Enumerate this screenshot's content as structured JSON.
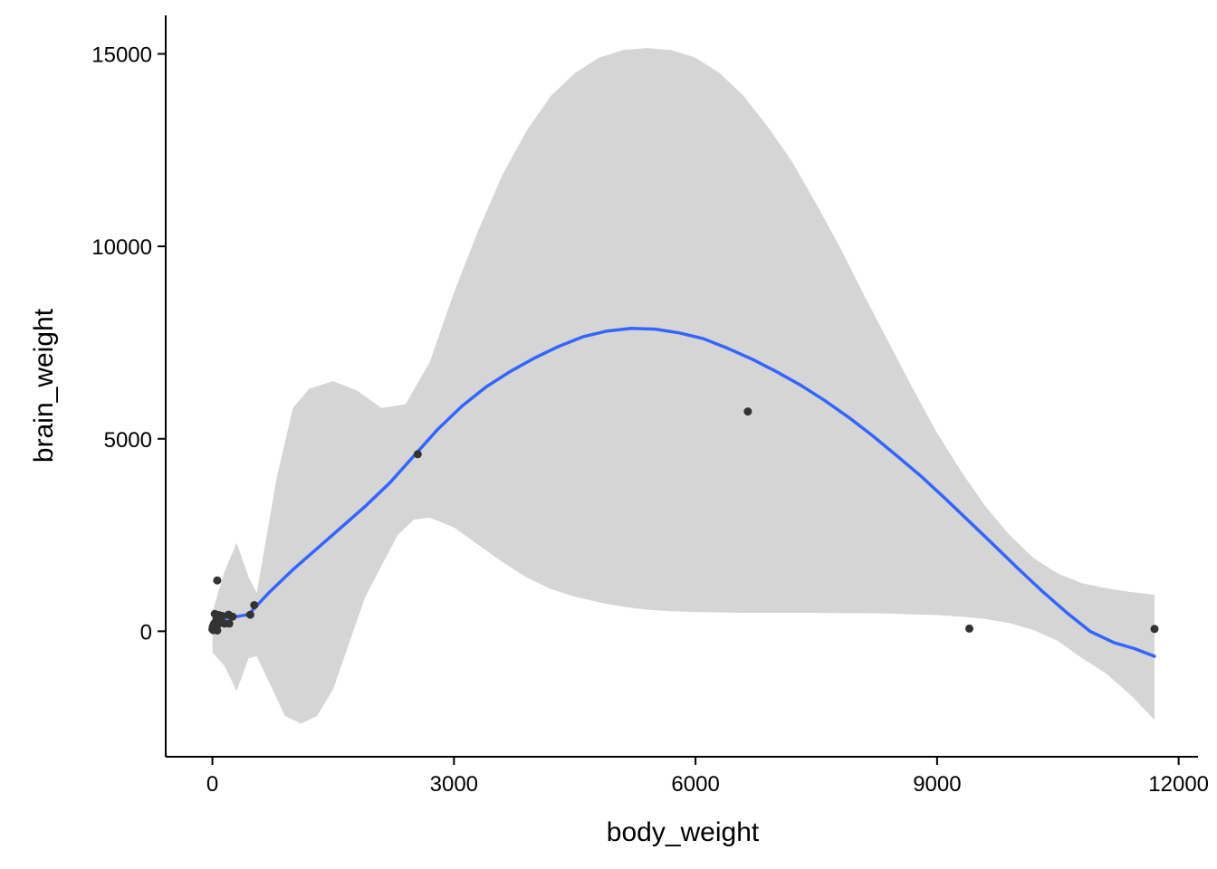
{
  "chart_data": {
    "type": "scatter",
    "title": "",
    "xlabel": "body_weight",
    "ylabel": "brain_weight",
    "xlim": [
      -580,
      12240
    ],
    "ylim": [
      -3260,
      16000
    ],
    "x_ticks": [
      0,
      3000,
      6000,
      9000,
      12000
    ],
    "x_tick_labels": [
      "0",
      "3000",
      "6000",
      "9000",
      "12000"
    ],
    "y_ticks": [
      0,
      5000,
      10000,
      15000
    ],
    "y_tick_labels": [
      "0",
      "5000",
      "10000",
      "15000"
    ],
    "grid": false,
    "legend": "none",
    "colors": {
      "points": "#333333",
      "smooth_line": "#3366FF",
      "confidence_band": "#D5D5D5",
      "axes": "#000000"
    },
    "points": [
      {
        "x": 0,
        "y": 50
      },
      {
        "x": 5,
        "y": 120
      },
      {
        "x": 10,
        "y": 30
      },
      {
        "x": 15,
        "y": 80
      },
      {
        "x": 20,
        "y": 200
      },
      {
        "x": 25,
        "y": 150
      },
      {
        "x": 30,
        "y": 450
      },
      {
        "x": 40,
        "y": 100
      },
      {
        "x": 50,
        "y": 300
      },
      {
        "x": 60,
        "y": 20
      },
      {
        "x": 70,
        "y": 180
      },
      {
        "x": 80,
        "y": 420
      },
      {
        "x": 100,
        "y": 250
      },
      {
        "x": 60,
        "y": 1320
      },
      {
        "x": 120,
        "y": 400
      },
      {
        "x": 150,
        "y": 200
      },
      {
        "x": 200,
        "y": 430
      },
      {
        "x": 210,
        "y": 200
      },
      {
        "x": 250,
        "y": 380
      },
      {
        "x": 470,
        "y": 430
      },
      {
        "x": 520,
        "y": 680
      },
      {
        "x": 2550,
        "y": 4600
      },
      {
        "x": 6650,
        "y": 5710
      },
      {
        "x": 9400,
        "y": 70
      },
      {
        "x": 11700,
        "y": 60
      }
    ],
    "smooth_line": [
      [
        0,
        0
      ],
      [
        50,
        250
      ],
      [
        100,
        330
      ],
      [
        200,
        350
      ],
      [
        300,
        380
      ],
      [
        450,
        440
      ],
      [
        700,
        1000
      ],
      [
        1000,
        1600
      ],
      [
        1300,
        2150
      ],
      [
        1600,
        2700
      ],
      [
        1900,
        3250
      ],
      [
        2200,
        3850
      ],
      [
        2500,
        4550
      ],
      [
        2800,
        5250
      ],
      [
        3100,
        5850
      ],
      [
        3400,
        6350
      ],
      [
        3700,
        6750
      ],
      [
        4000,
        7100
      ],
      [
        4300,
        7400
      ],
      [
        4600,
        7650
      ],
      [
        4900,
        7800
      ],
      [
        5200,
        7870
      ],
      [
        5500,
        7850
      ],
      [
        5800,
        7750
      ],
      [
        6100,
        7600
      ],
      [
        6400,
        7350
      ],
      [
        6700,
        7070
      ],
      [
        7000,
        6750
      ],
      [
        7300,
        6400
      ],
      [
        7600,
        6000
      ],
      [
        7900,
        5560
      ],
      [
        8200,
        5080
      ],
      [
        8500,
        4560
      ],
      [
        8800,
        4030
      ],
      [
        9100,
        3450
      ],
      [
        9400,
        2850
      ],
      [
        9700,
        2250
      ],
      [
        10000,
        1640
      ],
      [
        10300,
        1050
      ],
      [
        10600,
        500
      ],
      [
        10900,
        0
      ],
      [
        11200,
        -300
      ],
      [
        11450,
        -450
      ],
      [
        11700,
        -650
      ]
    ],
    "band_upper": [
      [
        0,
        500
      ],
      [
        150,
        1550
      ],
      [
        300,
        2300
      ],
      [
        450,
        1400
      ],
      [
        550,
        1000
      ],
      [
        650,
        2200
      ],
      [
        800,
        4000
      ],
      [
        1000,
        5800
      ],
      [
        1200,
        6300
      ],
      [
        1500,
        6500
      ],
      [
        1800,
        6250
      ],
      [
        2100,
        5800
      ],
      [
        2400,
        5900
      ],
      [
        2700,
        7000
      ],
      [
        3000,
        8800
      ],
      [
        3300,
        10400
      ],
      [
        3600,
        11850
      ],
      [
        3900,
        13000
      ],
      [
        4200,
        13900
      ],
      [
        4500,
        14500
      ],
      [
        4800,
        14900
      ],
      [
        5100,
        15100
      ],
      [
        5400,
        15150
      ],
      [
        5700,
        15100
      ],
      [
        6000,
        14900
      ],
      [
        6300,
        14500
      ],
      [
        6600,
        13900
      ],
      [
        6900,
        13100
      ],
      [
        7200,
        12200
      ],
      [
        7500,
        11100
      ],
      [
        7800,
        9950
      ],
      [
        8100,
        8700
      ],
      [
        8400,
        7500
      ],
      [
        8700,
        6300
      ],
      [
        9000,
        5150
      ],
      [
        9300,
        4150
      ],
      [
        9600,
        3250
      ],
      [
        9900,
        2500
      ],
      [
        10200,
        1900
      ],
      [
        10500,
        1500
      ],
      [
        10800,
        1250
      ],
      [
        11100,
        1120
      ],
      [
        11400,
        1020
      ],
      [
        11700,
        950
      ]
    ],
    "band_lower": [
      [
        0,
        -550
      ],
      [
        150,
        -900
      ],
      [
        300,
        -1550
      ],
      [
        450,
        -700
      ],
      [
        550,
        -650
      ],
      [
        700,
        -1300
      ],
      [
        900,
        -2200
      ],
      [
        1100,
        -2400
      ],
      [
        1300,
        -2200
      ],
      [
        1500,
        -1500
      ],
      [
        1700,
        -300
      ],
      [
        1900,
        900
      ],
      [
        2100,
        1700
      ],
      [
        2300,
        2500
      ],
      [
        2500,
        2900
      ],
      [
        2700,
        2950
      ],
      [
        3000,
        2700
      ],
      [
        3300,
        2250
      ],
      [
        3600,
        1800
      ],
      [
        3900,
        1400
      ],
      [
        4200,
        1100
      ],
      [
        4500,
        900
      ],
      [
        4800,
        750
      ],
      [
        5100,
        640
      ],
      [
        5400,
        560
      ],
      [
        5700,
        520
      ],
      [
        6000,
        500
      ],
      [
        6300,
        490
      ],
      [
        6600,
        480
      ],
      [
        6900,
        480
      ],
      [
        7200,
        480
      ],
      [
        7500,
        480
      ],
      [
        7800,
        470
      ],
      [
        8100,
        470
      ],
      [
        8400,
        460
      ],
      [
        8700,
        440
      ],
      [
        9000,
        420
      ],
      [
        9300,
        380
      ],
      [
        9600,
        320
      ],
      [
        9900,
        210
      ],
      [
        10200,
        30
      ],
      [
        10500,
        -250
      ],
      [
        10800,
        -700
      ],
      [
        11100,
        -1100
      ],
      [
        11400,
        -1650
      ],
      [
        11700,
        -2300
      ]
    ]
  }
}
